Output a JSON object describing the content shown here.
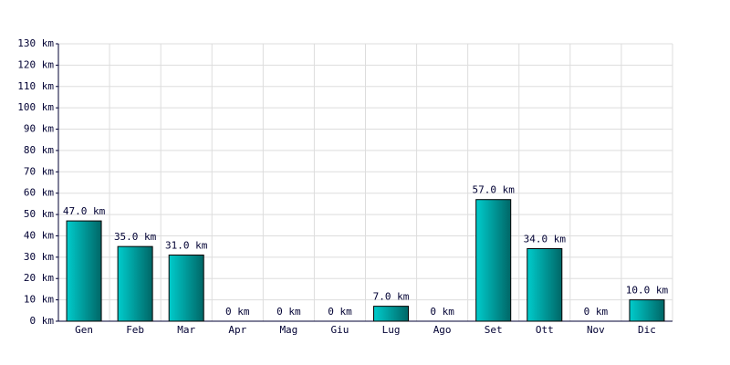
{
  "chart_data": {
    "type": "bar",
    "categories": [
      "Gen",
      "Feb",
      "Mar",
      "Apr",
      "Mag",
      "Giu",
      "Lug",
      "Ago",
      "Set",
      "Ott",
      "Nov",
      "Dic"
    ],
    "values": [
      47,
      35,
      31,
      0,
      0,
      0,
      7,
      0,
      57,
      34,
      0,
      10
    ],
    "value_labels": [
      "47.0 km",
      "35.0 km",
      "31.0 km",
      "0 km",
      "0 km",
      "0 km",
      "7.0 km",
      "0 km",
      "57.0 km",
      "34.0 km",
      "0 km",
      "10.0 km"
    ],
    "color": "#00cccc",
    "ylim": [
      0,
      130
    ],
    "yticks": [
      {
        "value": 0,
        "label": "0 km"
      },
      {
        "value": 10,
        "label": "10 km"
      },
      {
        "value": 20,
        "label": "20 km"
      },
      {
        "value": 30,
        "label": "30 km"
      },
      {
        "value": 40,
        "label": "40 km"
      },
      {
        "value": 50,
        "label": "50 km"
      },
      {
        "value": 60,
        "label": "60 km"
      },
      {
        "value": 70,
        "label": "70 km"
      },
      {
        "value": 80,
        "label": "80 km"
      },
      {
        "value": 90,
        "label": "90 km"
      },
      {
        "value": 100,
        "label": "100 km"
      },
      {
        "value": 110,
        "label": "110 km"
      },
      {
        "value": 120,
        "label": "120 km"
      },
      {
        "value": 130,
        "label": "130 km"
      }
    ],
    "grid": true
  }
}
